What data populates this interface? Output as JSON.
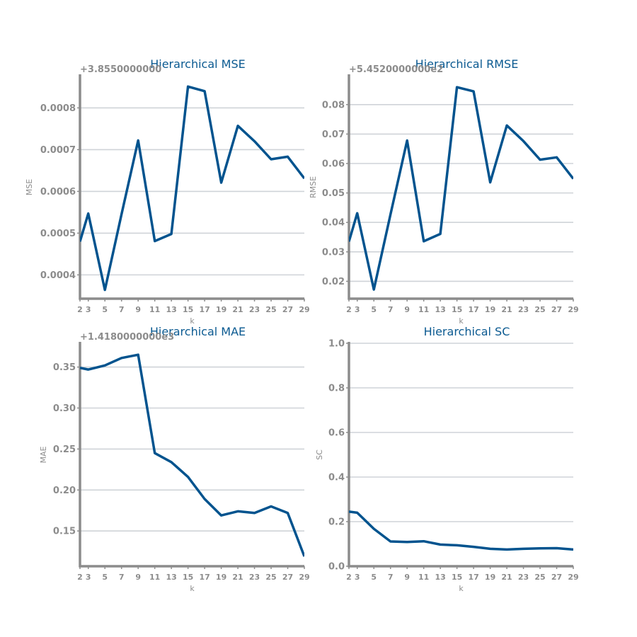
{
  "colors": {
    "line": "#00538e",
    "axis": "#8c8c8c",
    "grid": "#cfd3d8",
    "title": "#0b5a91"
  },
  "chart_data": [
    {
      "type": "line",
      "title": "Hierarchical MSE",
      "xlabel": "k",
      "ylabel": "MSE",
      "offset_label": "+3.8550000000",
      "x": [
        2,
        3,
        5,
        7,
        9,
        11,
        13,
        15,
        17,
        19,
        21,
        23,
        25,
        27,
        29
      ],
      "series": [
        {
          "values": [
            0.00048,
            0.000547,
            0.000364,
            0.000545,
            0.000722,
            0.000481,
            0.000498,
            0.000851,
            0.00084,
            0.000621,
            0.000757,
            0.00072,
            0.000677,
            0.000683,
            0.000631
          ]
        }
      ],
      "yticks": [
        0.0004,
        0.0005,
        0.0006,
        0.0007,
        0.0008
      ],
      "ytick_labels": [
        "0.0004",
        "0.0005",
        "0.0006",
        "0.0007",
        "0.0008"
      ],
      "ylim": [
        0.000343,
        0.000877
      ],
      "xlim": [
        2,
        29
      ],
      "xticks": [
        2,
        3,
        5,
        7,
        9,
        11,
        13,
        15,
        17,
        19,
        21,
        23,
        25,
        27,
        29
      ],
      "grid": true
    },
    {
      "type": "line",
      "title": "Hierarchical RMSE",
      "xlabel": "k",
      "ylabel": "RMSE",
      "offset_label": "+5.4520000000e2",
      "x": [
        2,
        3,
        5,
        7,
        9,
        11,
        13,
        15,
        17,
        19,
        21,
        23,
        25,
        27,
        29
      ],
      "series": [
        {
          "values": [
            0.0335,
            0.0431,
            0.0172,
            0.0427,
            0.0678,
            0.0336,
            0.0361,
            0.0859,
            0.0845,
            0.0536,
            0.0729,
            0.0676,
            0.0613,
            0.0621,
            0.0548
          ]
        }
      ],
      "yticks": [
        0.02,
        0.03,
        0.04,
        0.05,
        0.06,
        0.07,
        0.08
      ],
      "ytick_labels": [
        "0.02",
        "0.03",
        "0.04",
        "0.05",
        "0.06",
        "0.07",
        "0.08"
      ],
      "ylim": [
        0.0141,
        0.0898
      ],
      "xlim": [
        2,
        29
      ],
      "xticks": [
        2,
        3,
        5,
        7,
        9,
        11,
        13,
        15,
        17,
        19,
        21,
        23,
        25,
        27,
        29
      ],
      "grid": true
    },
    {
      "type": "line",
      "title": "Hierarchical MAE",
      "xlabel": "k",
      "ylabel": "MAE",
      "offset_label": "+1.4180000000e3",
      "x": [
        2,
        3,
        5,
        7,
        9,
        11,
        13,
        15,
        17,
        19,
        21,
        23,
        25,
        27,
        29
      ],
      "series": [
        {
          "values": [
            0.349,
            0.347,
            0.352,
            0.361,
            0.365,
            0.245,
            0.234,
            0.216,
            0.189,
            0.169,
            0.174,
            0.172,
            0.18,
            0.172,
            0.119
          ]
        }
      ],
      "yticks": [
        0.15,
        0.2,
        0.25,
        0.3,
        0.35
      ],
      "ytick_labels": [
        "0.15",
        "0.20",
        "0.25",
        "0.30",
        "0.35"
      ],
      "ylim": [
        0.107,
        0.379
      ],
      "xlim": [
        2,
        29
      ],
      "xticks": [
        2,
        3,
        5,
        7,
        9,
        11,
        13,
        15,
        17,
        19,
        21,
        23,
        25,
        27,
        29
      ],
      "grid": true
    },
    {
      "type": "line",
      "title": "Hierarchical SC",
      "xlabel": "k",
      "ylabel": "SC",
      "offset_label": "",
      "x": [
        2,
        3,
        5,
        7,
        9,
        11,
        13,
        15,
        17,
        19,
        21,
        23,
        25,
        27,
        29
      ],
      "series": [
        {
          "values": [
            0.245,
            0.24,
            0.168,
            0.111,
            0.109,
            0.112,
            0.097,
            0.094,
            0.087,
            0.078,
            0.075,
            0.078,
            0.08,
            0.081,
            0.075
          ]
        }
      ],
      "yticks": [
        0,
        0.2,
        0.4,
        0.6,
        0.8,
        1.0
      ],
      "ytick_labels": [
        "0.0",
        "0.2",
        "0.4",
        "0.6",
        "0.8",
        "1.0"
      ],
      "ylim": [
        0,
        1.0
      ],
      "xlim": [
        2,
        29
      ],
      "xticks": [
        2,
        3,
        5,
        7,
        9,
        11,
        13,
        15,
        17,
        19,
        21,
        23,
        25,
        27,
        29
      ],
      "grid": true
    }
  ]
}
